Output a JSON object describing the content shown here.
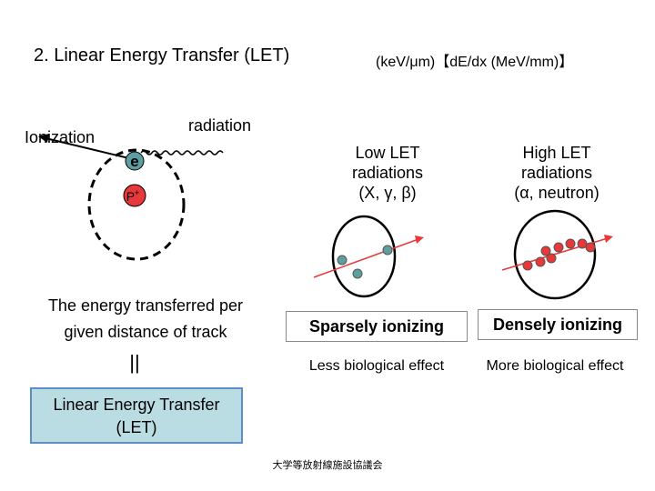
{
  "title": "2. Linear Energy Transfer (LET)",
  "units": "(keV/μm)【dE/dx (MeV/mm)】",
  "atom": {
    "ionization_label": "Ionization",
    "radiation_label": "radiation",
    "electron_label": "e",
    "proton_label": "P",
    "proton_charge": "+"
  },
  "low_let": {
    "heading": [
      "Low LET",
      "radiations",
      "(X, γ, β)"
    ],
    "descriptor": "Sparsely ionizing",
    "effect": "Less biological effect",
    "dot_color": "#5f9ea0"
  },
  "high_let": {
    "heading": [
      "High LET",
      "radiations",
      "(α, neutron)"
    ],
    "descriptor": "Densely ionizing",
    "effect": "More biological effect",
    "dot_color": "#e8383a"
  },
  "definition": {
    "text": [
      "The energy transferred per",
      "given distance of track"
    ],
    "equals_sign": "||",
    "term": [
      "Linear Energy Transfer",
      "(LET)"
    ]
  },
  "footer": "大学等放射線施設協議会",
  "colors": {
    "let_box_fill": "#b9dde3",
    "let_box_border": "#5d8ec4",
    "track_line": "#e8383a",
    "electron_fill": "#5f9ea0",
    "proton_fill": "#e8383a"
  }
}
